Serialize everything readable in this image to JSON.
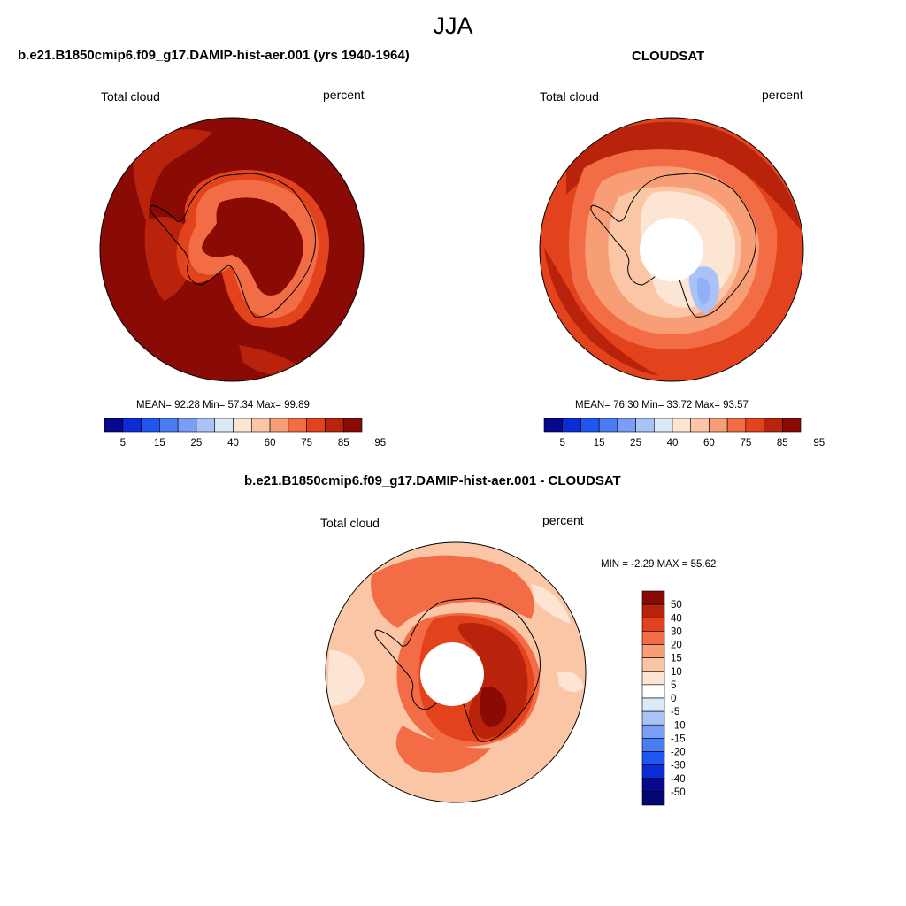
{
  "season": "JJA",
  "panels": [
    {
      "title": "b.e21.B1850cmip6.f09_g17.DAMIP-hist-aer.001 (yrs 1940-1964)",
      "left_label": "Total cloud",
      "right_label": "percent",
      "stats": "MEAN=  92.28  Min=  57.34  Max=  99.89"
    },
    {
      "title": "CLOUDSAT",
      "left_label": "Total cloud",
      "right_label": "percent",
      "stats": "MEAN=  76.30  Min=  33.72  Max=  93.57"
    },
    {
      "title": "b.e21.B1850cmip6.f09_g17.DAMIP-hist-aer.001 - CLOUDSAT",
      "left_label": "Total cloud",
      "right_label": "percent",
      "stats": "MIN =  -2.29 MAX =  55.62"
    }
  ],
  "chart_data": [
    {
      "type": "heatmap",
      "projection": "south-polar-stereographic",
      "title": "b.e21.B1850cmip6.f09_g17.DAMIP-hist-aer.001 (yrs 1940-1964)",
      "variable": "Total cloud",
      "units": "percent",
      "mean": 92.28,
      "min": 57.34,
      "max": 99.89,
      "colorbar_ticks": [
        "5",
        "15",
        "25",
        "40",
        "60",
        "75",
        "85",
        "95"
      ],
      "colorbar_colors": [
        "#08088c",
        "#0a2bd6",
        "#1f55f0",
        "#4a7cf3",
        "#7a9ef7",
        "#a9c3f7",
        "#dce9f7",
        "#fde5d3",
        "#fbc6a6",
        "#f89e77",
        "#f26d45",
        "#e2431c",
        "#b9230b",
        "#8a0a05"
      ],
      "palette": {
        "ocean": "#8a0a05",
        "coast_band": "#c93a12",
        "interior": "#8a0a05"
      }
    },
    {
      "type": "heatmap",
      "projection": "south-polar-stereographic",
      "title": "CLOUDSAT",
      "variable": "Total cloud",
      "units": "percent",
      "mean": 76.3,
      "min": 33.72,
      "max": 93.57,
      "colorbar_ticks": [
        "5",
        "15",
        "25",
        "40",
        "60",
        "75",
        "85",
        "95"
      ],
      "colorbar_colors": [
        "#08088c",
        "#0a2bd6",
        "#1f55f0",
        "#4a7cf3",
        "#7a9ef7",
        "#a9c3f7",
        "#dce9f7",
        "#fde5d3",
        "#fbc6a6",
        "#f89e77",
        "#f26d45",
        "#e2431c",
        "#b9230b",
        "#8a0a05"
      ],
      "palette": {
        "ocean": "#e2431c",
        "coast_band": "#f89e77",
        "interior": "#fde5d3",
        "low_cloud": "#a9c3f7"
      }
    },
    {
      "type": "heatmap",
      "projection": "south-polar-stereographic",
      "title": "b.e21.B1850cmip6.f09_g17.DAMIP-hist-aer.001 - CLOUDSAT",
      "variable": "Total cloud",
      "units": "percent",
      "min": -2.29,
      "max": 55.62,
      "colorbar_ticks": [
        "50",
        "40",
        "30",
        "20",
        "15",
        "10",
        "5",
        "0",
        "-5",
        "-10",
        "-15",
        "-20",
        "-30",
        "-40",
        "-50"
      ],
      "colorbar_colors": [
        "#8a0a05",
        "#b9230b",
        "#e2431c",
        "#f26d45",
        "#f89e77",
        "#fbc6a6",
        "#fde5d3",
        "#ffffff",
        "#dce9f7",
        "#a9c3f7",
        "#7a9ef7",
        "#4a7cf3",
        "#1f55f0",
        "#0a2bd6",
        "#08088c",
        "#060672"
      ],
      "palette": {
        "background": "#fbc6a6",
        "band": "#f26d45",
        "coast": "#e2431c",
        "peak": "#b9230b"
      }
    }
  ]
}
